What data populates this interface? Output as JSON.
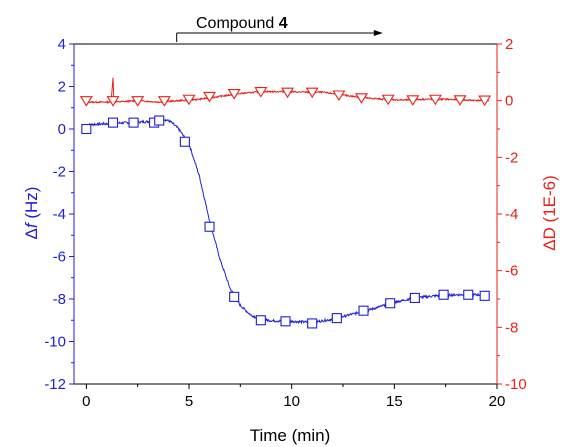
{
  "chart_data": {
    "type": "line",
    "annotation": {
      "text": "Compound ",
      "bold": "4",
      "x_start": 4.4,
      "x_end": 14.0
    },
    "xlabel": "Time (min)",
    "ylabel_left": {
      "prefix": "Δ",
      "italic": "f",
      "suffix": " (Hz)"
    },
    "ylabel_right": "ΔD (1E-6)",
    "xlim": [
      -0.6,
      20.0
    ],
    "xticks": [
      0,
      5,
      10,
      15,
      20
    ],
    "ylim_left": [
      -12,
      4
    ],
    "yticks_left": [
      -12,
      -10,
      -8,
      -6,
      -4,
      -2,
      0,
      2,
      4
    ],
    "ylim_right": [
      -10,
      2
    ],
    "yticks_right": [
      -10,
      -8,
      -6,
      -4,
      -2,
      0,
      2
    ],
    "colors": {
      "frequency": "#1f1fd6",
      "dissipation": "#e8211a",
      "axes": "#000000"
    },
    "series": [
      {
        "axis": "left",
        "marker": "square",
        "curve": [
          [
            0,
            0.2
          ],
          [
            1,
            0.25
          ],
          [
            2,
            0.3
          ],
          [
            3,
            0.35
          ],
          [
            3.8,
            0.45
          ],
          [
            4.1,
            0.35
          ],
          [
            4.5,
            0.0
          ],
          [
            5.0,
            -0.7
          ],
          [
            5.5,
            -2.2
          ],
          [
            6.0,
            -4.3
          ],
          [
            6.5,
            -6.1
          ],
          [
            7.0,
            -7.5
          ],
          [
            7.5,
            -8.3
          ],
          [
            8.0,
            -8.75
          ],
          [
            8.5,
            -8.95
          ],
          [
            9.0,
            -9.02
          ],
          [
            10.0,
            -9.05
          ],
          [
            11.0,
            -9.1
          ],
          [
            12.0,
            -8.95
          ],
          [
            13.0,
            -8.7
          ],
          [
            14.0,
            -8.45
          ],
          [
            15.0,
            -8.15
          ],
          [
            16.0,
            -7.95
          ],
          [
            17.0,
            -7.85
          ],
          [
            18.0,
            -7.8
          ],
          [
            19.0,
            -7.8
          ],
          [
            19.6,
            -7.8
          ]
        ],
        "markers": [
          [
            0,
            0.0
          ],
          [
            1.3,
            0.3
          ],
          [
            2.3,
            0.3
          ],
          [
            3.3,
            0.3
          ],
          [
            3.55,
            0.4
          ],
          [
            4.8,
            -0.6
          ],
          [
            6.0,
            -4.6
          ],
          [
            7.2,
            -7.9
          ],
          [
            8.5,
            -9.0
          ],
          [
            9.7,
            -9.05
          ],
          [
            11.0,
            -9.15
          ],
          [
            12.2,
            -8.9
          ],
          [
            13.5,
            -8.55
          ],
          [
            14.8,
            -8.2
          ],
          [
            16.0,
            -7.95
          ],
          [
            17.4,
            -7.8
          ],
          [
            18.6,
            -7.8
          ],
          [
            19.4,
            -7.85
          ]
        ]
      },
      {
        "axis": "right",
        "marker": "triangle-down",
        "curve": [
          [
            0,
            -0.05
          ],
          [
            1.2,
            -0.05
          ],
          [
            1.3,
            0.8
          ],
          [
            1.35,
            -0.05
          ],
          [
            2.5,
            0.0
          ],
          [
            3.5,
            -0.05
          ],
          [
            4.5,
            0.0
          ],
          [
            5.5,
            0.05
          ],
          [
            6.5,
            0.15
          ],
          [
            7.5,
            0.25
          ],
          [
            8.5,
            0.32
          ],
          [
            9.5,
            0.32
          ],
          [
            10.5,
            0.3
          ],
          [
            11.5,
            0.3
          ],
          [
            12.5,
            0.2
          ],
          [
            13.5,
            0.1
          ],
          [
            14.5,
            0.05
          ],
          [
            15.5,
            0.02
          ],
          [
            16.5,
            0.05
          ],
          [
            17.5,
            0.05
          ],
          [
            18.5,
            0.02
          ],
          [
            19.6,
            0.0
          ]
        ],
        "markers": [
          [
            0,
            0.0
          ],
          [
            1.3,
            0.0
          ],
          [
            2.5,
            0.0
          ],
          [
            3.8,
            0.0
          ],
          [
            5.0,
            0.05
          ],
          [
            6.0,
            0.15
          ],
          [
            7.2,
            0.25
          ],
          [
            8.5,
            0.32
          ],
          [
            9.8,
            0.3
          ],
          [
            11.0,
            0.3
          ],
          [
            12.3,
            0.2
          ],
          [
            13.4,
            0.1
          ],
          [
            14.7,
            0.05
          ],
          [
            15.9,
            0.03
          ],
          [
            17.0,
            0.05
          ],
          [
            18.2,
            0.03
          ],
          [
            19.4,
            0.02
          ]
        ]
      }
    ]
  }
}
